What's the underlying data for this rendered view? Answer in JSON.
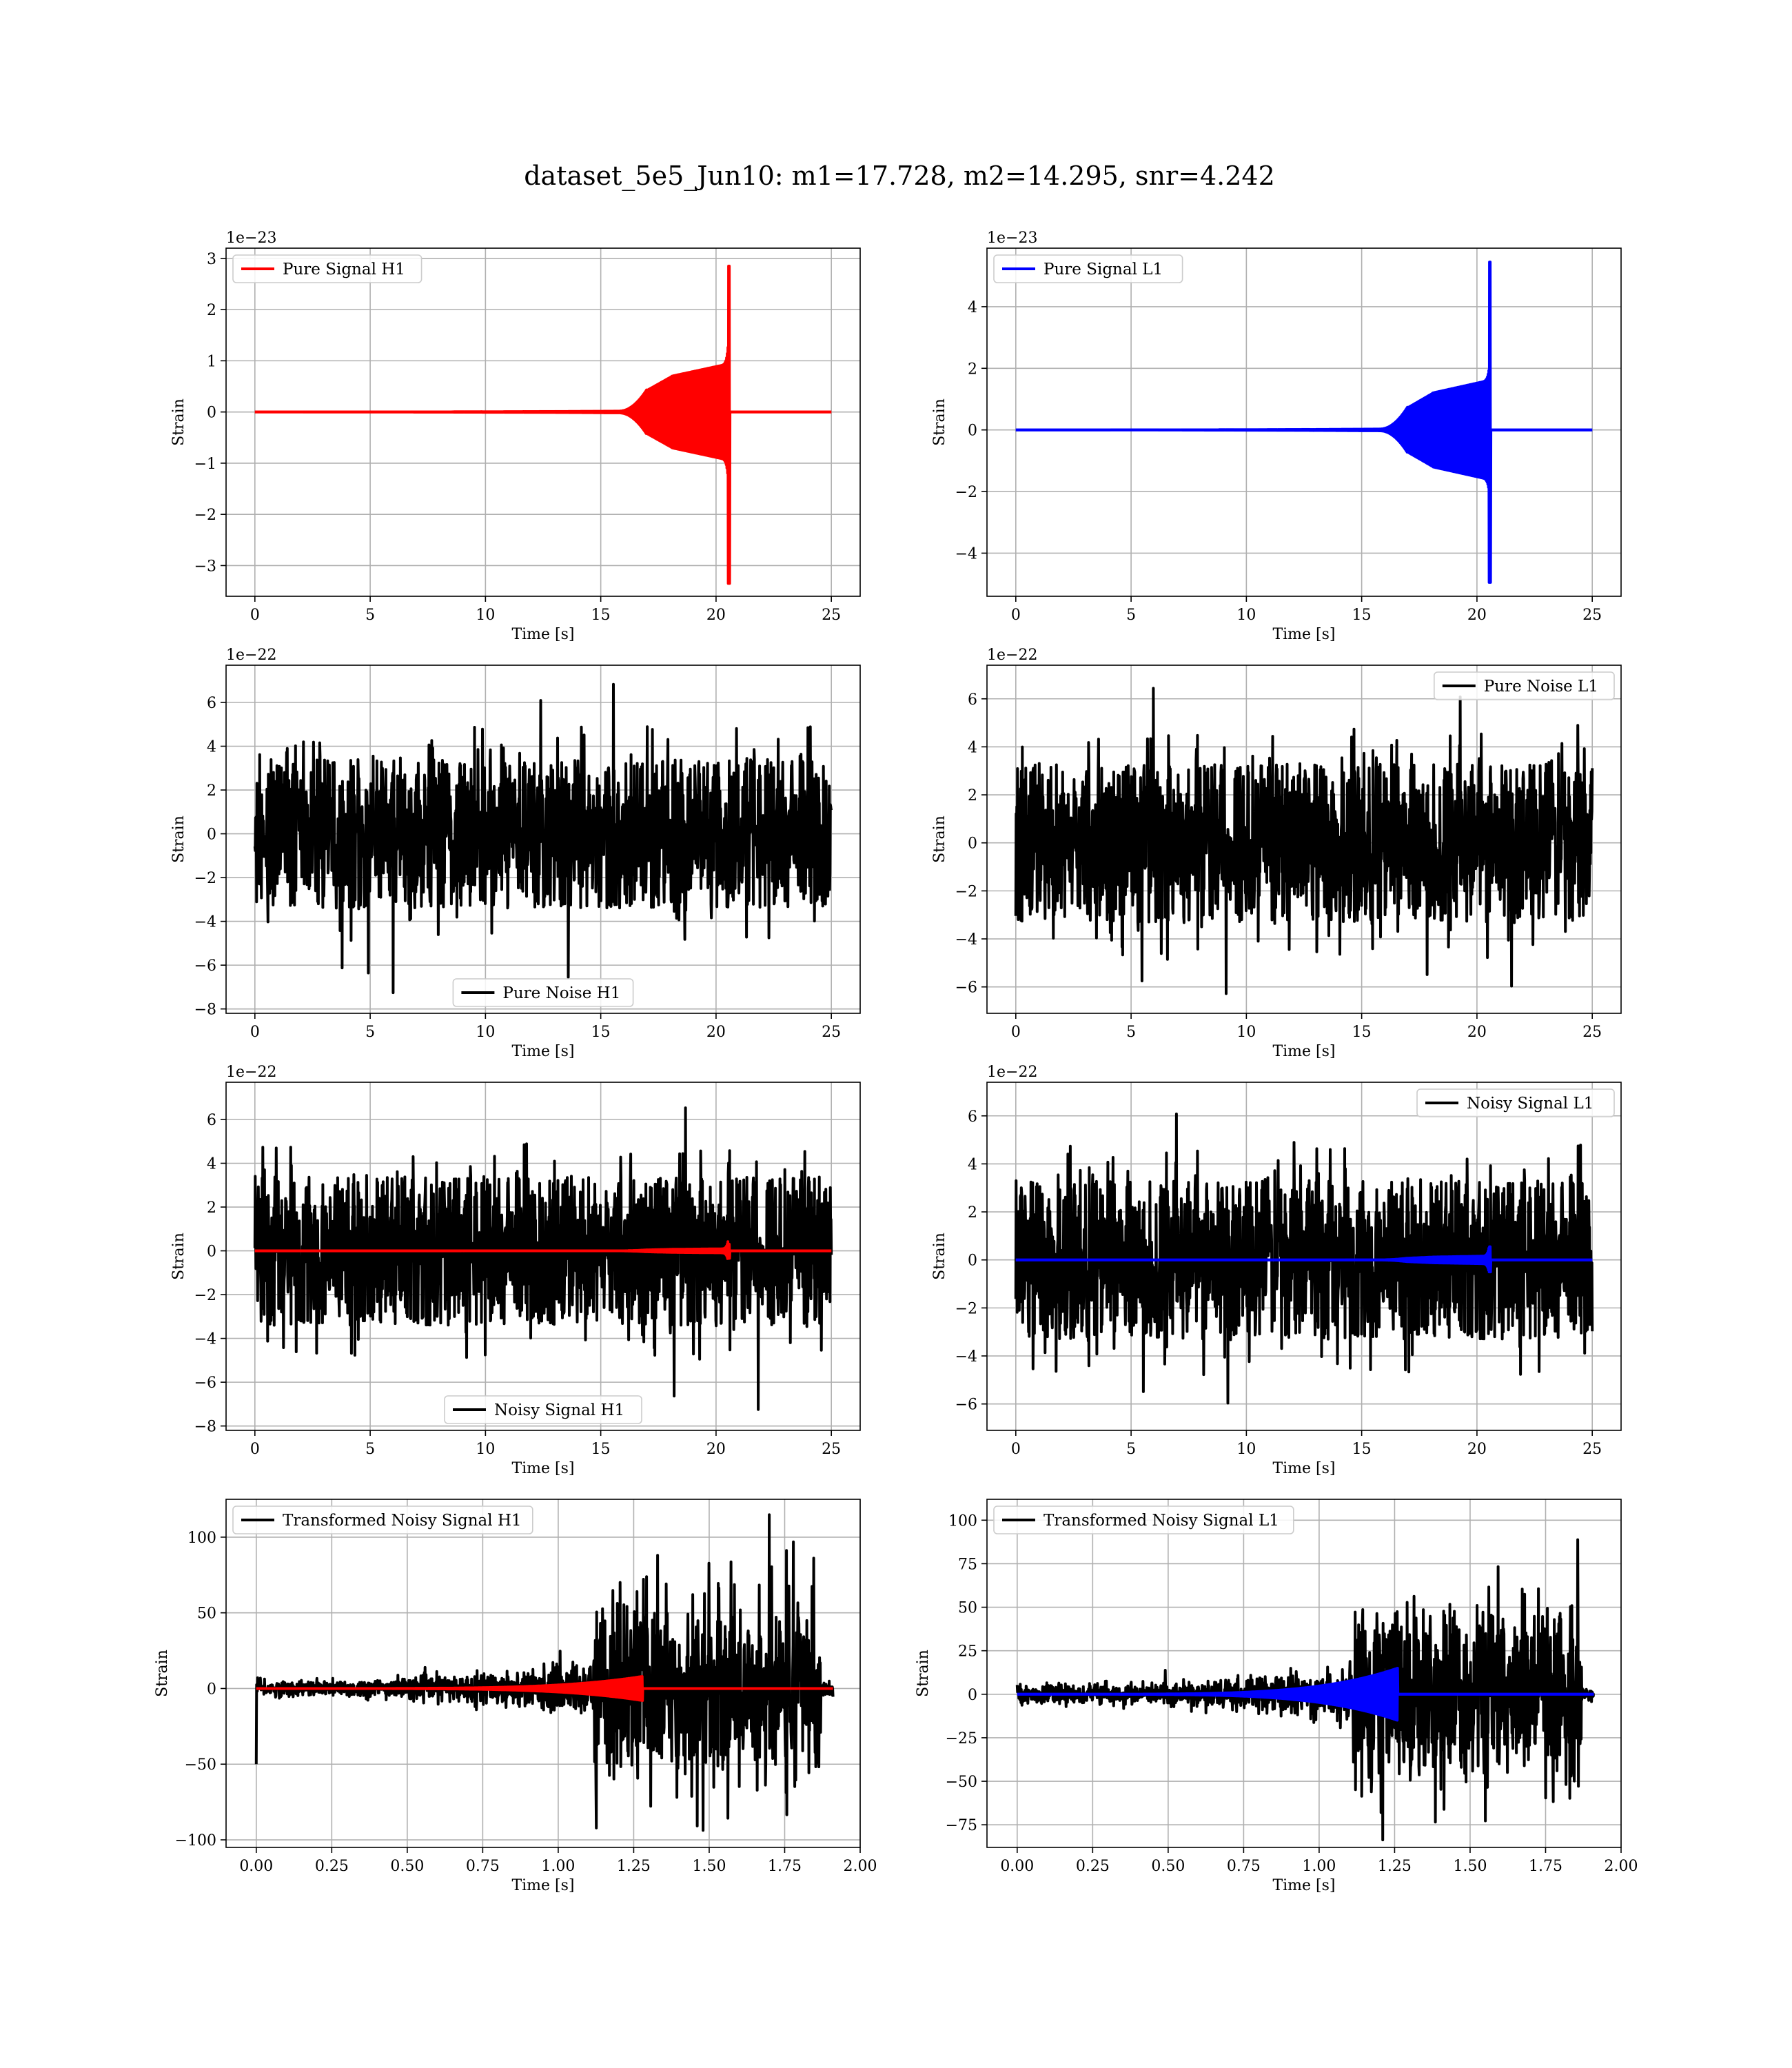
{
  "figure": {
    "title": "dataset_5e5_Jun10: m1=17.728, m2=14.295, snr=4.242"
  },
  "chart_data": [
    {
      "type": "line",
      "id": "pure-signal-h1",
      "xlabel": "Time [s]",
      "ylabel": "Strain",
      "offset_text": "1e−23",
      "xlim": [
        -1.25,
        26.25
      ],
      "ylim": [
        -3.6,
        3.2
      ],
      "xticks": [
        0,
        5,
        10,
        15,
        20,
        25
      ],
      "xtick_labels": [
        "0",
        "5",
        "10",
        "15",
        "20",
        "25"
      ],
      "yticks": [
        -3,
        -2,
        -1,
        0,
        1,
        2,
        3
      ],
      "ytick_labels": [
        "−3",
        "−2",
        "−1",
        "0",
        "1",
        "2",
        "3"
      ],
      "legend_loc": "upper-left",
      "grid": true,
      "series": [
        {
          "name": "Pure Signal H1",
          "color": "#ff0000",
          "kind": "chirp",
          "x_start": 0,
          "x_end": 25,
          "merger": 20.6,
          "plateau_start": 17.0,
          "plateau_amp": 0.7,
          "peak_pos": 2.85,
          "peak_neg": -3.35
        }
      ]
    },
    {
      "type": "line",
      "id": "pure-signal-l1",
      "xlabel": "Time [s]",
      "ylabel": "Strain",
      "offset_text": "1e−23",
      "xlim": [
        -1.25,
        26.25
      ],
      "ylim": [
        -5.4,
        5.9
      ],
      "xticks": [
        0,
        5,
        10,
        15,
        20,
        25
      ],
      "xtick_labels": [
        "0",
        "5",
        "10",
        "15",
        "20",
        "25"
      ],
      "yticks": [
        -4,
        -2,
        0,
        2,
        4
      ],
      "ytick_labels": [
        "−4",
        "−2",
        "0",
        "2",
        "4"
      ],
      "legend_loc": "upper-left",
      "grid": true,
      "series": [
        {
          "name": "Pure Signal L1",
          "color": "#0000ff",
          "kind": "chirp",
          "x_start": 0,
          "x_end": 25,
          "merger": 20.6,
          "plateau_start": 17.0,
          "plateau_amp": 1.2,
          "peak_pos": 5.45,
          "peak_neg": -4.95
        }
      ]
    },
    {
      "type": "line",
      "id": "pure-noise-h1",
      "xlabel": "Time [s]",
      "ylabel": "Strain",
      "offset_text": "1e−22",
      "xlim": [
        -1.25,
        26.25
      ],
      "ylim": [
        -8.2,
        7.7
      ],
      "xticks": [
        0,
        5,
        10,
        15,
        20,
        25
      ],
      "xtick_labels": [
        "0",
        "5",
        "10",
        "15",
        "20",
        "25"
      ],
      "yticks": [
        -8,
        -6,
        -4,
        -2,
        0,
        2,
        4,
        6
      ],
      "ytick_labels": [
        "−8",
        "−6",
        "−4",
        "−2",
        "0",
        "2",
        "4",
        "6"
      ],
      "legend_loc": "lower-center",
      "grid": true,
      "series": [
        {
          "name": "Pure Noise H1",
          "color": "#000000",
          "kind": "noise",
          "x_start": 0,
          "x_end": 25,
          "band": 3.4,
          "spike_max": 7.0,
          "spike_min": -7.5
        }
      ]
    },
    {
      "type": "line",
      "id": "pure-noise-l1",
      "xlabel": "Time [s]",
      "ylabel": "Strain",
      "offset_text": "1e−22",
      "xlim": [
        -1.25,
        26.25
      ],
      "ylim": [
        -7.1,
        7.4
      ],
      "xticks": [
        0,
        5,
        10,
        15,
        20,
        25
      ],
      "xtick_labels": [
        "0",
        "5",
        "10",
        "15",
        "20",
        "25"
      ],
      "yticks": [
        -6,
        -4,
        -2,
        0,
        2,
        4,
        6
      ],
      "ytick_labels": [
        "−6",
        "−4",
        "−2",
        "0",
        "2",
        "4",
        "6"
      ],
      "legend_loc": "upper-right",
      "grid": true,
      "series": [
        {
          "name": "Pure Noise L1",
          "color": "#000000",
          "kind": "noise",
          "x_start": 0,
          "x_end": 25,
          "band": 3.3,
          "spike_max": 6.9,
          "spike_min": -6.5
        }
      ]
    },
    {
      "type": "line",
      "id": "noisy-signal-h1",
      "xlabel": "Time [s]",
      "ylabel": "Strain",
      "offset_text": "1e−22",
      "xlim": [
        -1.25,
        26.25
      ],
      "ylim": [
        -8.2,
        7.7
      ],
      "xticks": [
        0,
        5,
        10,
        15,
        20,
        25
      ],
      "xtick_labels": [
        "0",
        "5",
        "10",
        "15",
        "20",
        "25"
      ],
      "yticks": [
        -8,
        -6,
        -4,
        -2,
        0,
        2,
        4,
        6
      ],
      "ytick_labels": [
        "−8",
        "−6",
        "−4",
        "−2",
        "0",
        "2",
        "4",
        "6"
      ],
      "legend_loc": "lower-center",
      "grid": true,
      "series": [
        {
          "name": "Noisy Signal H1",
          "color": "#000000",
          "kind": "noise",
          "x_start": 0,
          "x_end": 25,
          "band": 3.4,
          "spike_max": 7.0,
          "spike_min": -7.5
        },
        {
          "name": "",
          "color": "#ff0000",
          "kind": "chirp",
          "x_start": 0,
          "x_end": 25,
          "merger": 20.6,
          "plateau_start": 17.0,
          "plateau_amp": 0.07,
          "peak_pos": 0.3,
          "peak_neg": -0.34
        }
      ]
    },
    {
      "type": "line",
      "id": "noisy-signal-l1",
      "xlabel": "Time [s]",
      "ylabel": "Strain",
      "offset_text": "1e−22",
      "xlim": [
        -1.25,
        26.25
      ],
      "ylim": [
        -7.1,
        7.4
      ],
      "xticks": [
        0,
        5,
        10,
        15,
        20,
        25
      ],
      "xtick_labels": [
        "0",
        "5",
        "10",
        "15",
        "20",
        "25"
      ],
      "yticks": [
        -6,
        -4,
        -2,
        0,
        2,
        4,
        6
      ],
      "ytick_labels": [
        "−6",
        "−4",
        "−2",
        "0",
        "2",
        "4",
        "6"
      ],
      "legend_loc": "upper-right",
      "grid": true,
      "series": [
        {
          "name": "Noisy Signal L1",
          "color": "#000000",
          "kind": "noise",
          "x_start": 0,
          "x_end": 25,
          "band": 3.3,
          "spike_max": 6.9,
          "spike_min": -6.5
        },
        {
          "name": "",
          "color": "#0000ff",
          "kind": "chirp",
          "x_start": 0,
          "x_end": 25,
          "merger": 20.6,
          "plateau_start": 17.0,
          "plateau_amp": 0.12,
          "peak_pos": 0.55,
          "peak_neg": -0.5
        }
      ]
    },
    {
      "type": "line",
      "id": "transformed-noisy-signal-h1",
      "xlabel": "Time [s]",
      "ylabel": "Strain",
      "offset_text": "",
      "xlim": [
        -0.1,
        2.0
      ],
      "ylim": [
        -105,
        125
      ],
      "xticks": [
        0.0,
        0.25,
        0.5,
        0.75,
        1.0,
        1.25,
        1.5,
        1.75,
        2.0
      ],
      "xtick_labels": [
        "0.00",
        "0.25",
        "0.50",
        "0.75",
        "1.00",
        "1.25",
        "1.50",
        "1.75",
        "2.00"
      ],
      "yticks": [
        -100,
        -50,
        0,
        50,
        100
      ],
      "ytick_labels": [
        "−100",
        "−50",
        "0",
        "50",
        "100"
      ],
      "legend_loc": "upper-left",
      "grid": true,
      "series": [
        {
          "name": "Transformed Noisy Signal H1",
          "color": "#000000",
          "kind": "transformed-noise",
          "x_start": 0,
          "x_end": 1.91,
          "step": 1.12,
          "step_end": 1.87,
          "low_band": 5,
          "grow_band": 18,
          "high_band": 60,
          "spike_max": 115,
          "spike_min": -93,
          "start_spike": -50
        },
        {
          "name": "",
          "color": "#ff0000",
          "kind": "transformed-chirp",
          "x_start": 0,
          "x_end": 1.91,
          "merger": 1.28,
          "peak": 8
        }
      ]
    },
    {
      "type": "line",
      "id": "transformed-noisy-signal-l1",
      "xlabel": "Time [s]",
      "ylabel": "Strain",
      "offset_text": "",
      "xlim": [
        -0.1,
        2.0
      ],
      "ylim": [
        -88,
        112
      ],
      "xticks": [
        0.0,
        0.25,
        0.5,
        0.75,
        1.0,
        1.25,
        1.5,
        1.75,
        2.0
      ],
      "xtick_labels": [
        "0.00",
        "0.25",
        "0.50",
        "0.75",
        "1.00",
        "1.25",
        "1.50",
        "1.75",
        "2.00"
      ],
      "yticks": [
        -75,
        -50,
        -25,
        0,
        25,
        50,
        75,
        100
      ],
      "ytick_labels": [
        "−75",
        "−50",
        "−25",
        "0",
        "25",
        "50",
        "75",
        "100"
      ],
      "legend_loc": "upper-left",
      "grid": true,
      "series": [
        {
          "name": "Transformed Noisy Signal L1",
          "color": "#000000",
          "kind": "transformed-noise",
          "x_start": 0,
          "x_end": 1.91,
          "step": 1.11,
          "step_end": 1.87,
          "low_band": 5,
          "grow_band": 16,
          "high_band": 50,
          "spike_max": 107,
          "spike_min": -88,
          "start_spike": 0
        },
        {
          "name": "",
          "color": "#0000ff",
          "kind": "transformed-chirp",
          "x_start": 0,
          "x_end": 1.91,
          "merger": 1.26,
          "peak": 15
        }
      ]
    }
  ]
}
